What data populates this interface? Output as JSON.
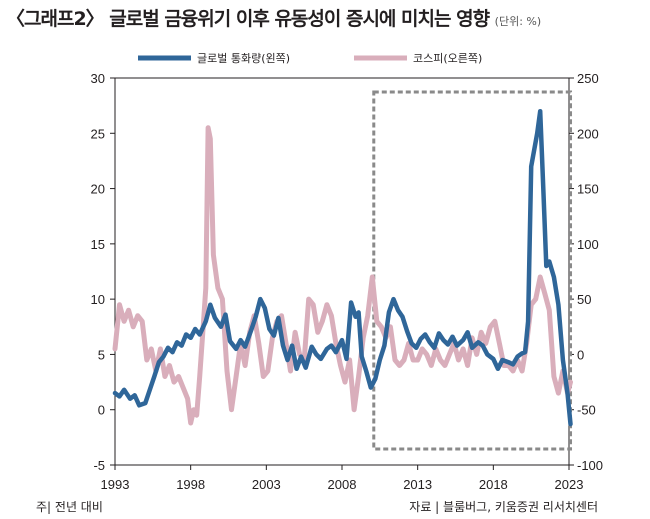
{
  "title": "〈그래프2〉 글로벌 금융위기 이후 유동성이 증시에 미치는 영향",
  "unit_label": "(단위: %)",
  "note": "주| 전년 대비",
  "source": "자료 | 블룸버그, 키움증권 리서치센터",
  "colors": {
    "liquidity": "#2f6699",
    "kospi": "#d9aebb",
    "highlight_box": "#8a8a8a"
  },
  "chart_data": {
    "type": "line",
    "x_ticks": [
      "1993",
      "1998",
      "2003",
      "2008",
      "2013",
      "2018",
      "2023"
    ],
    "y_left": {
      "range": [
        -5,
        30
      ],
      "ticks": [
        "-5",
        "0",
        "5",
        "10",
        "15",
        "20",
        "25",
        "30"
      ]
    },
    "y_right": {
      "range": [
        -100,
        250
      ],
      "ticks": [
        "-100",
        "-50",
        "0",
        "50",
        "100",
        "150",
        "200",
        "250"
      ]
    },
    "highlight_box": {
      "x_range": [
        2010.1,
        2023.1
      ]
    },
    "series": [
      {
        "name": "글로벌 통화량(왼쪽)",
        "axis": "left",
        "x": [
          1993.0,
          1993.3,
          1993.6,
          1994.0,
          1994.3,
          1994.6,
          1995.0,
          1995.3,
          1995.6,
          1995.9,
          1996.2,
          1996.5,
          1996.8,
          1997.1,
          1997.4,
          1997.7,
          1998.0,
          1998.3,
          1998.6,
          1999.0,
          1999.3,
          1999.6,
          2000.0,
          2000.3,
          2000.6,
          2001.0,
          2001.3,
          2001.6,
          2002.0,
          2002.3,
          2002.6,
          2002.9,
          2003.2,
          2003.5,
          2003.8,
          2004.1,
          2004.4,
          2004.7,
          2005.0,
          2005.3,
          2005.6,
          2006.0,
          2006.3,
          2006.6,
          2007.0,
          2007.3,
          2007.6,
          2008.0,
          2008.3,
          2008.6,
          2008.9,
          2009.1,
          2009.3,
          2009.6,
          2009.9,
          2010.2,
          2010.5,
          2010.8,
          2011.1,
          2011.4,
          2011.7,
          2012.0,
          2012.3,
          2012.6,
          2012.9,
          2013.2,
          2013.5,
          2013.8,
          2014.1,
          2014.4,
          2014.7,
          2015.0,
          2015.3,
          2015.6,
          2016.0,
          2016.3,
          2016.6,
          2017.0,
          2017.3,
          2017.6,
          2018.0,
          2018.3,
          2018.6,
          2019.0,
          2019.3,
          2019.6,
          2019.9,
          2020.1,
          2020.3,
          2020.5,
          2020.7,
          2020.9,
          2021.1,
          2021.3,
          2021.5,
          2021.7,
          2022.0,
          2022.3,
          2022.6,
          2022.9,
          2023.1
        ],
        "values": [
          1.5,
          1.2,
          1.8,
          1.0,
          1.3,
          0.4,
          0.6,
          1.8,
          3.0,
          4.3,
          4.8,
          5.6,
          5.2,
          6.1,
          5.8,
          6.8,
          6.5,
          7.3,
          6.8,
          8.0,
          9.5,
          8.3,
          7.5,
          8.6,
          6.2,
          5.5,
          6.3,
          5.7,
          7.2,
          8.4,
          10.0,
          9.2,
          7.3,
          6.7,
          8.3,
          5.8,
          4.5,
          5.8,
          3.7,
          4.8,
          3.8,
          5.7,
          5.0,
          4.6,
          5.5,
          5.8,
          5.2,
          6.3,
          4.6,
          9.7,
          8.4,
          8.8,
          4.8,
          3.5,
          2.0,
          2.8,
          4.5,
          5.8,
          8.8,
          10.0,
          9.0,
          8.4,
          7.1,
          6.0,
          5.6,
          6.4,
          6.8,
          6.1,
          5.6,
          6.9,
          6.3,
          5.9,
          6.6,
          5.8,
          6.3,
          7.0,
          5.6,
          6.1,
          5.8,
          5.0,
          4.6,
          3.7,
          4.5,
          4.3,
          4.1,
          4.8,
          5.1,
          5.2,
          8.0,
          22.0,
          23.5,
          25.0,
          27.0,
          20.0,
          13.0,
          13.4,
          12.0,
          9.5,
          4.5,
          1.5,
          -1.3
        ]
      },
      {
        "name": "코스피(오른쪽)",
        "axis": "right",
        "x": [
          1993.0,
          1993.3,
          1993.6,
          1993.9,
          1994.2,
          1994.5,
          1994.8,
          1995.1,
          1995.4,
          1995.7,
          1996.0,
          1996.3,
          1996.6,
          1996.9,
          1997.2,
          1997.5,
          1997.8,
          1998.0,
          1998.2,
          1998.4,
          1998.6,
          1998.8,
          1999.0,
          1999.15,
          1999.3,
          1999.5,
          1999.8,
          2000.1,
          2000.4,
          2000.7,
          2001.0,
          2001.3,
          2001.6,
          2001.9,
          2002.2,
          2002.5,
          2002.8,
          2003.1,
          2003.4,
          2003.7,
          2004.0,
          2004.3,
          2004.6,
          2004.9,
          2005.2,
          2005.5,
          2005.8,
          2006.1,
          2006.4,
          2006.7,
          2007.0,
          2007.3,
          2007.6,
          2007.9,
          2008.2,
          2008.5,
          2008.8,
          2009.1,
          2009.4,
          2009.7,
          2010.0,
          2010.3,
          2010.6,
          2010.9,
          2011.2,
          2011.5,
          2011.8,
          2012.1,
          2012.4,
          2012.7,
          2013.0,
          2013.3,
          2013.6,
          2013.9,
          2014.2,
          2014.5,
          2014.8,
          2015.1,
          2015.4,
          2015.7,
          2016.0,
          2016.3,
          2016.6,
          2016.9,
          2017.2,
          2017.5,
          2017.8,
          2018.1,
          2018.4,
          2018.7,
          2019.0,
          2019.3,
          2019.6,
          2019.9,
          2020.2,
          2020.5,
          2020.8,
          2021.1,
          2021.4,
          2021.7,
          2022.0,
          2022.3,
          2022.6,
          2022.9,
          2023.1
        ],
        "values": [
          5,
          45,
          30,
          40,
          25,
          35,
          30,
          -5,
          5,
          -15,
          5,
          -20,
          -10,
          -25,
          -20,
          -30,
          -40,
          -62,
          -50,
          -55,
          -20,
          20,
          60,
          205,
          195,
          90,
          60,
          50,
          -15,
          -50,
          -20,
          10,
          -10,
          20,
          35,
          10,
          -20,
          -15,
          15,
          30,
          35,
          10,
          -15,
          20,
          0,
          -5,
          50,
          45,
          20,
          30,
          45,
          35,
          10,
          -10,
          -25,
          -5,
          -50,
          -20,
          15,
          35,
          70,
          30,
          25,
          15,
          25,
          -5,
          -10,
          -5,
          10,
          -5,
          -5,
          5,
          0,
          -10,
          5,
          -5,
          -10,
          0,
          10,
          -5,
          5,
          -10,
          15,
          0,
          20,
          10,
          25,
          30,
          10,
          -10,
          -10,
          -15,
          -5,
          -15,
          10,
          45,
          50,
          70,
          55,
          40,
          -20,
          -35,
          -15,
          -35,
          -25
        ]
      }
    ]
  }
}
